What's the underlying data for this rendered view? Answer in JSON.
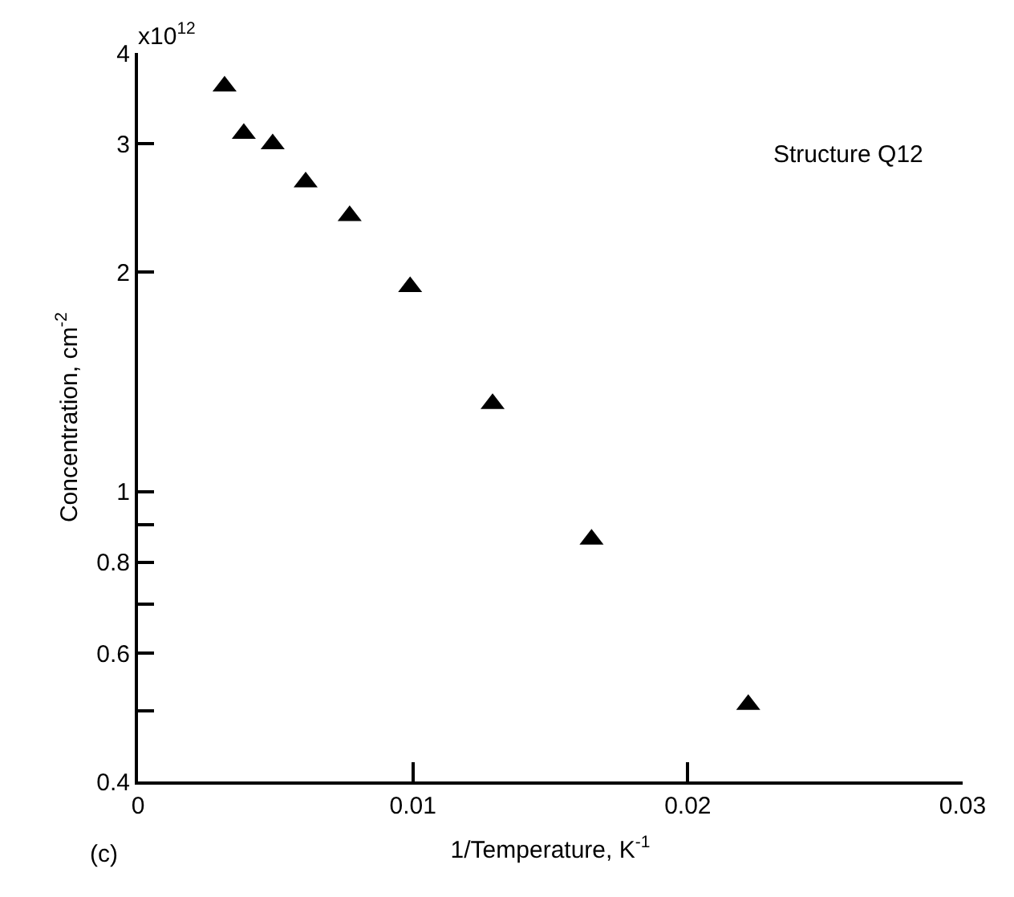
{
  "chart_data": {
    "type": "scatter",
    "xlabel": "1/Temperature, K$^{-1}$",
    "ylabel": "Concentration, cm$^{-2}$",
    "annotations": [
      "Structure Q12",
      "(c)",
      "x10$^{12}$"
    ],
    "x": [
      0.00315,
      0.00385,
      0.0049,
      0.0061,
      0.0077,
      0.0099,
      0.0129,
      0.0165,
      0.0222
    ],
    "series": [
      {
        "color": "#000000",
        "values": [
          3.6,
          3.1,
          3.0,
          2.66,
          2.39,
          1.91,
          1.32,
          0.86,
          0.51
        ]
      }
    ],
    "marker": "triangle",
    "log": "y",
    "xlim": [
      0,
      0.03
    ],
    "xticks": [
      0,
      0.01,
      0.02,
      0.03
    ],
    "ylim": [
      0.4,
      4
    ],
    "yticks": [
      0.4,
      {
        "value": 0.5,
        "label": null
      },
      0.6,
      {
        "value": 0.7,
        "label": null
      },
      0.8,
      {
        "value": 0.9,
        "label": null
      },
      1,
      2,
      3,
      4
    ],
    "grid": false
  }
}
